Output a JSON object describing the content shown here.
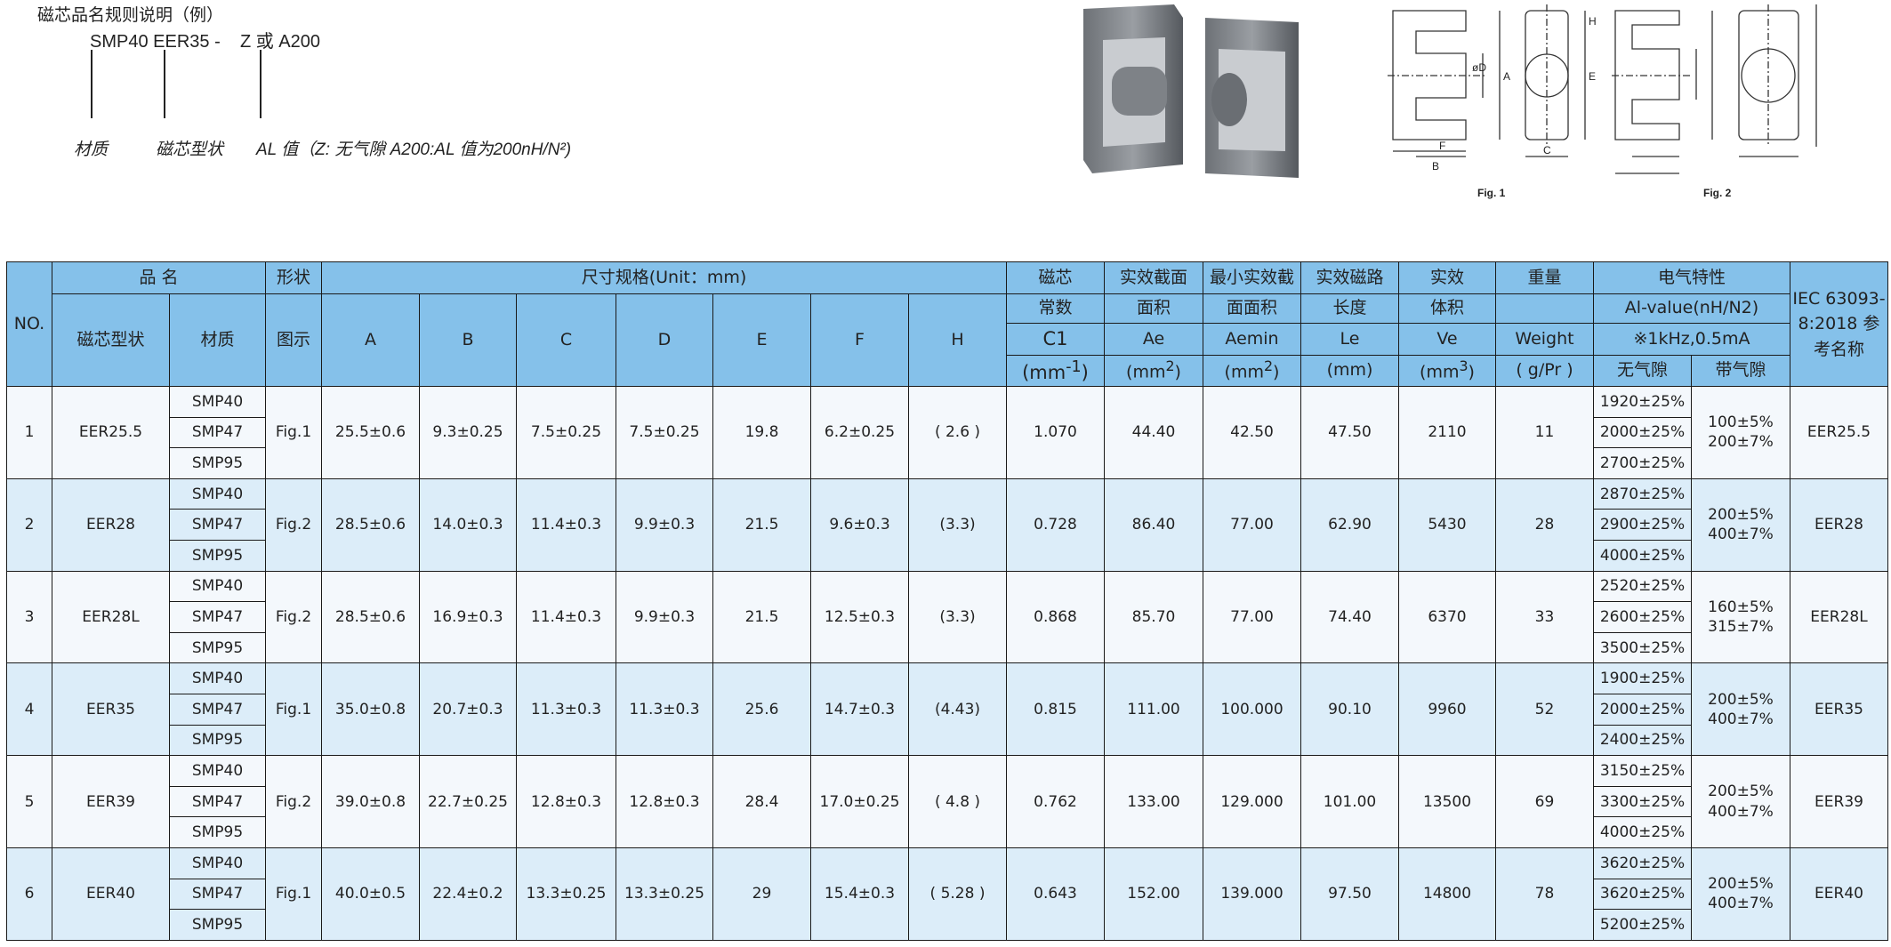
{
  "naming_rule": {
    "title": "磁芯品名规则说明（例）",
    "code": "SMP40 EER35 -    Z 或 A200",
    "labels": {
      "material": "材质",
      "core_shape": "磁芯型状",
      "al": "AL 值（Z: 无气隙  A200:AL 值为200nH/N²)"
    }
  },
  "figures": {
    "fig1": "Fig. 1",
    "fig2": "Fig. 2",
    "dims": [
      "A",
      "B",
      "C",
      "øD",
      "E",
      "F",
      "H"
    ]
  },
  "colors": {
    "header": "#85c1ea",
    "row_light": "#f4f8fc",
    "row_blue": "#dcedf9"
  },
  "table": {
    "header": {
      "no": "NO.",
      "name": "品 名",
      "shape": "形状",
      "dims": "尺寸规格(Unit：mm)",
      "core_type": "磁芯型状",
      "material": "材质",
      "figure": "图示",
      "dim_cols": [
        "A",
        "B",
        "C",
        "D",
        "E",
        "F",
        "H"
      ],
      "c1": [
        "磁芯",
        "常数",
        "C1",
        "(mm-1)"
      ],
      "ae": [
        "实效截面",
        "面积",
        "Ae",
        "(mm2)"
      ],
      "aemin": [
        "最小实效截",
        "面面积",
        "Aemin",
        "(mm2)"
      ],
      "le": [
        "实效磁路",
        "长度",
        "Le",
        "(mm)"
      ],
      "ve": [
        "实效",
        "体积",
        "Ve",
        "(mm3)"
      ],
      "weight": [
        "重量",
        "",
        "Weight",
        "( g/Pr )"
      ],
      "elec": [
        "电气特性",
        "Al-value(nH/N2)",
        "※1kHz,0.5mA"
      ],
      "ungapped": "无气隙",
      "gapped": "带气隙",
      "iec": "IEC 63093-8:2018 参考名称"
    },
    "rows": [
      {
        "no": "1",
        "type": "EER25.5",
        "materials": [
          "SMP40",
          "SMP47",
          "SMP95"
        ],
        "fig": "Fig.1",
        "dims": [
          "25.5±0.6",
          "9.3±0.25",
          "7.5±0.25",
          "7.5±0.25",
          "19.8",
          "6.2±0.25",
          "( 2.6 )"
        ],
        "c1": "1.070",
        "ae": "44.40",
        "aemin": "42.50",
        "le": "47.50",
        "ve": "2110",
        "weight": "11",
        "ungapped": [
          "1920±25%",
          "2000±25%",
          "2700±25%"
        ],
        "gapped": [
          "100±5%",
          "200±7%"
        ],
        "iec": "EER25.5"
      },
      {
        "no": "2",
        "type": "EER28",
        "materials": [
          "SMP40",
          "SMP47",
          "SMP95"
        ],
        "fig": "Fig.2",
        "dims": [
          "28.5±0.6",
          "14.0±0.3",
          "11.4±0.3",
          "9.9±0.3",
          "21.5",
          "9.6±0.3",
          "(3.3)"
        ],
        "c1": "0.728",
        "ae": "86.40",
        "aemin": "77.00",
        "le": "62.90",
        "ve": "5430",
        "weight": "28",
        "ungapped": [
          "2870±25%",
          "2900±25%",
          "4000±25%"
        ],
        "gapped": [
          "200±5%",
          "400±7%"
        ],
        "iec": "EER28"
      },
      {
        "no": "3",
        "type": "EER28L",
        "materials": [
          "SMP40",
          "SMP47",
          "SMP95"
        ],
        "fig": "Fig.2",
        "dims": [
          "28.5±0.6",
          "16.9±0.3",
          "11.4±0.3",
          "9.9±0.3",
          "21.5",
          "12.5±0.3",
          "(3.3)"
        ],
        "c1": "0.868",
        "ae": "85.70",
        "aemin": "77.00",
        "le": "74.40",
        "ve": "6370",
        "weight": "33",
        "ungapped": [
          "2520±25%",
          "2600±25%",
          "3500±25%"
        ],
        "gapped": [
          "160±5%",
          "315±7%"
        ],
        "iec": "EER28L"
      },
      {
        "no": "4",
        "type": "EER35",
        "materials": [
          "SMP40",
          "SMP47",
          "SMP95"
        ],
        "fig": "Fig.1",
        "dims": [
          "35.0±0.8",
          "20.7±0.3",
          "11.3±0.3",
          "11.3±0.3",
          "25.6",
          "14.7±0.3",
          "(4.43)"
        ],
        "c1": "0.815",
        "ae": "111.00",
        "aemin": "100.000",
        "le": "90.10",
        "ve": "9960",
        "weight": "52",
        "ungapped": [
          "1900±25%",
          "2000±25%",
          "2400±25%"
        ],
        "gapped": [
          "200±5%",
          "400±7%"
        ],
        "iec": "EER35"
      },
      {
        "no": "5",
        "type": "EER39",
        "materials": [
          "SMP40",
          "SMP47",
          "SMP95"
        ],
        "fig": "Fig.2",
        "dims": [
          "39.0±0.8",
          "22.7±0.25",
          "12.8±0.3",
          "12.8±0.3",
          "28.4",
          "17.0±0.25",
          "( 4.8 )"
        ],
        "c1": "0.762",
        "ae": "133.00",
        "aemin": "129.000",
        "le": "101.00",
        "ve": "13500",
        "weight": "69",
        "ungapped": [
          "3150±25%",
          "3300±25%",
          "4000±25%"
        ],
        "gapped": [
          "200±5%",
          "400±7%"
        ],
        "iec": "EER39"
      },
      {
        "no": "6",
        "type": "EER40",
        "materials": [
          "SMP40",
          "SMP47",
          "SMP95"
        ],
        "fig": "Fig.1",
        "dims": [
          "40.0±0.5",
          "22.4±0.2",
          "13.3±0.25",
          "13.3±0.25",
          "29",
          "15.4±0.3",
          "( 5.28 )"
        ],
        "c1": "0.643",
        "ae": "152.00",
        "aemin": "139.000",
        "le": "97.50",
        "ve": "14800",
        "weight": "78",
        "ungapped": [
          "3620±25%",
          "3620±25%",
          "5200±25%"
        ],
        "gapped": [
          "200±5%",
          "400±7%"
        ],
        "iec": "EER40"
      }
    ]
  }
}
